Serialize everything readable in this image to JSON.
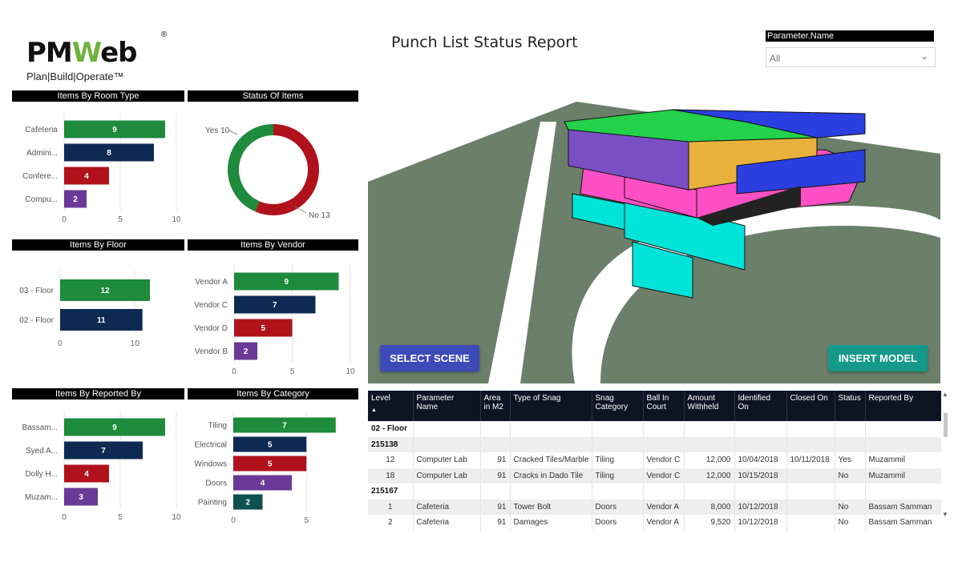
{
  "logo": {
    "brand_left": "PM",
    "brand_w": "W",
    "brand_right": "eb",
    "reg": "®",
    "tagline": "Plan|Build|Operate™"
  },
  "report_title": "Punch List Status Report",
  "parameter_filter": {
    "label": "Parameter.Name",
    "value": "All",
    "icon": "chevron-down-icon"
  },
  "colors": {
    "green": "#1e8a3c",
    "navy": "#0f2a52",
    "red": "#b0121c",
    "purple": "#6a3a96",
    "teal": "#0e4f4f"
  },
  "buttons": {
    "select_scene": "SELECT SCENE",
    "insert_model": "INSERT MODEL"
  },
  "chart_data": [
    {
      "type": "bar",
      "orientation": "horizontal",
      "title": "Items By Room Type",
      "categories": [
        "Cafeteria",
        "Admini...",
        "Confere...",
        "Compu..."
      ],
      "values": [
        9,
        8,
        4,
        2
      ],
      "xlim": [
        0,
        10
      ],
      "ticks": [
        0,
        5,
        10
      ]
    },
    {
      "type": "pie",
      "variant": "donut",
      "title": "Status Of Items",
      "slices": [
        {
          "label": "Yes",
          "value": 10
        },
        {
          "label": "No",
          "value": 13
        }
      ],
      "slice_labels": [
        "Yes 10",
        "No 13"
      ]
    },
    {
      "type": "bar",
      "orientation": "horizontal",
      "title": "Items By Floor",
      "categories": [
        "03 - Floor",
        "02 - Floor"
      ],
      "values": [
        12,
        11
      ],
      "xlim": [
        0,
        15
      ],
      "ticks": [
        0,
        10
      ]
    },
    {
      "type": "bar",
      "orientation": "horizontal",
      "title": "Items By Vendor",
      "categories": [
        "Vendor A",
        "Vendor C",
        "Vendor D",
        "Vendor B"
      ],
      "values": [
        9,
        7,
        5,
        2
      ],
      "xlim": [
        0,
        10
      ],
      "ticks": [
        0,
        5,
        10
      ]
    },
    {
      "type": "bar",
      "orientation": "horizontal",
      "title": "Items By Reported By",
      "categories": [
        "Bassam...",
        "Syed A...",
        "Dolly H...",
        "Muzam..."
      ],
      "values": [
        9,
        7,
        4,
        3
      ],
      "xlim": [
        0,
        10
      ],
      "ticks": [
        0,
        5,
        10
      ]
    },
    {
      "type": "bar",
      "orientation": "horizontal",
      "title": "Items By Category",
      "categories": [
        "Tiling",
        "Electrical",
        "Windows",
        "Doors",
        "Painting"
      ],
      "values": [
        7,
        5,
        5,
        4,
        2
      ],
      "xlim": [
        0,
        8
      ],
      "ticks": [
        0,
        5
      ]
    }
  ],
  "table": {
    "columns": [
      "Level",
      "Parameter Name",
      "Area in M2",
      "Type of Snag",
      "Snag Category",
      "Ball In Court",
      "Amount Withheld",
      "Identified On",
      "Closed On",
      "Status",
      "Reported By"
    ],
    "sort_indicator": "▲",
    "rows": [
      {
        "kind": "group",
        "cells": [
          "02 - Floor",
          "",
          "",
          "",
          "",
          "",
          "",
          "",
          "",
          "",
          ""
        ]
      },
      {
        "kind": "group",
        "cells": [
          "215138",
          "",
          "",
          "",
          "",
          "",
          "",
          "",
          "",
          "",
          ""
        ]
      },
      {
        "kind": "data",
        "cells": [
          "12",
          "Computer Lab",
          "91",
          "Cracked Tiles/Marble",
          "Tiling",
          "Vendor C",
          "12,000",
          "10/04/2018",
          "10/11/2018",
          "Yes",
          "Muzammil"
        ]
      },
      {
        "kind": "data",
        "cells": [
          "18",
          "Computer Lab",
          "91",
          "Cracks in Dado Tile",
          "Tiling",
          "Vendor C",
          "12,000",
          "10/15/2018",
          "",
          "No",
          "Muzammil"
        ]
      },
      {
        "kind": "group",
        "cells": [
          "215167",
          "",
          "",
          "",
          "",
          "",
          "",
          "",
          "",
          "",
          ""
        ]
      },
      {
        "kind": "data",
        "cells": [
          "1",
          "Cafeteria",
          "91",
          "Tower Bolt",
          "Doors",
          "Vendor A",
          "8,000",
          "10/12/2018",
          "",
          "No",
          "Bassam Samman"
        ]
      },
      {
        "kind": "data",
        "cells": [
          "2",
          "Cafeteria",
          "91",
          "Damages",
          "Doors",
          "Vendor A",
          "9,520",
          "10/12/2018",
          "",
          "No",
          "Bassam Samman"
        ]
      }
    ]
  }
}
